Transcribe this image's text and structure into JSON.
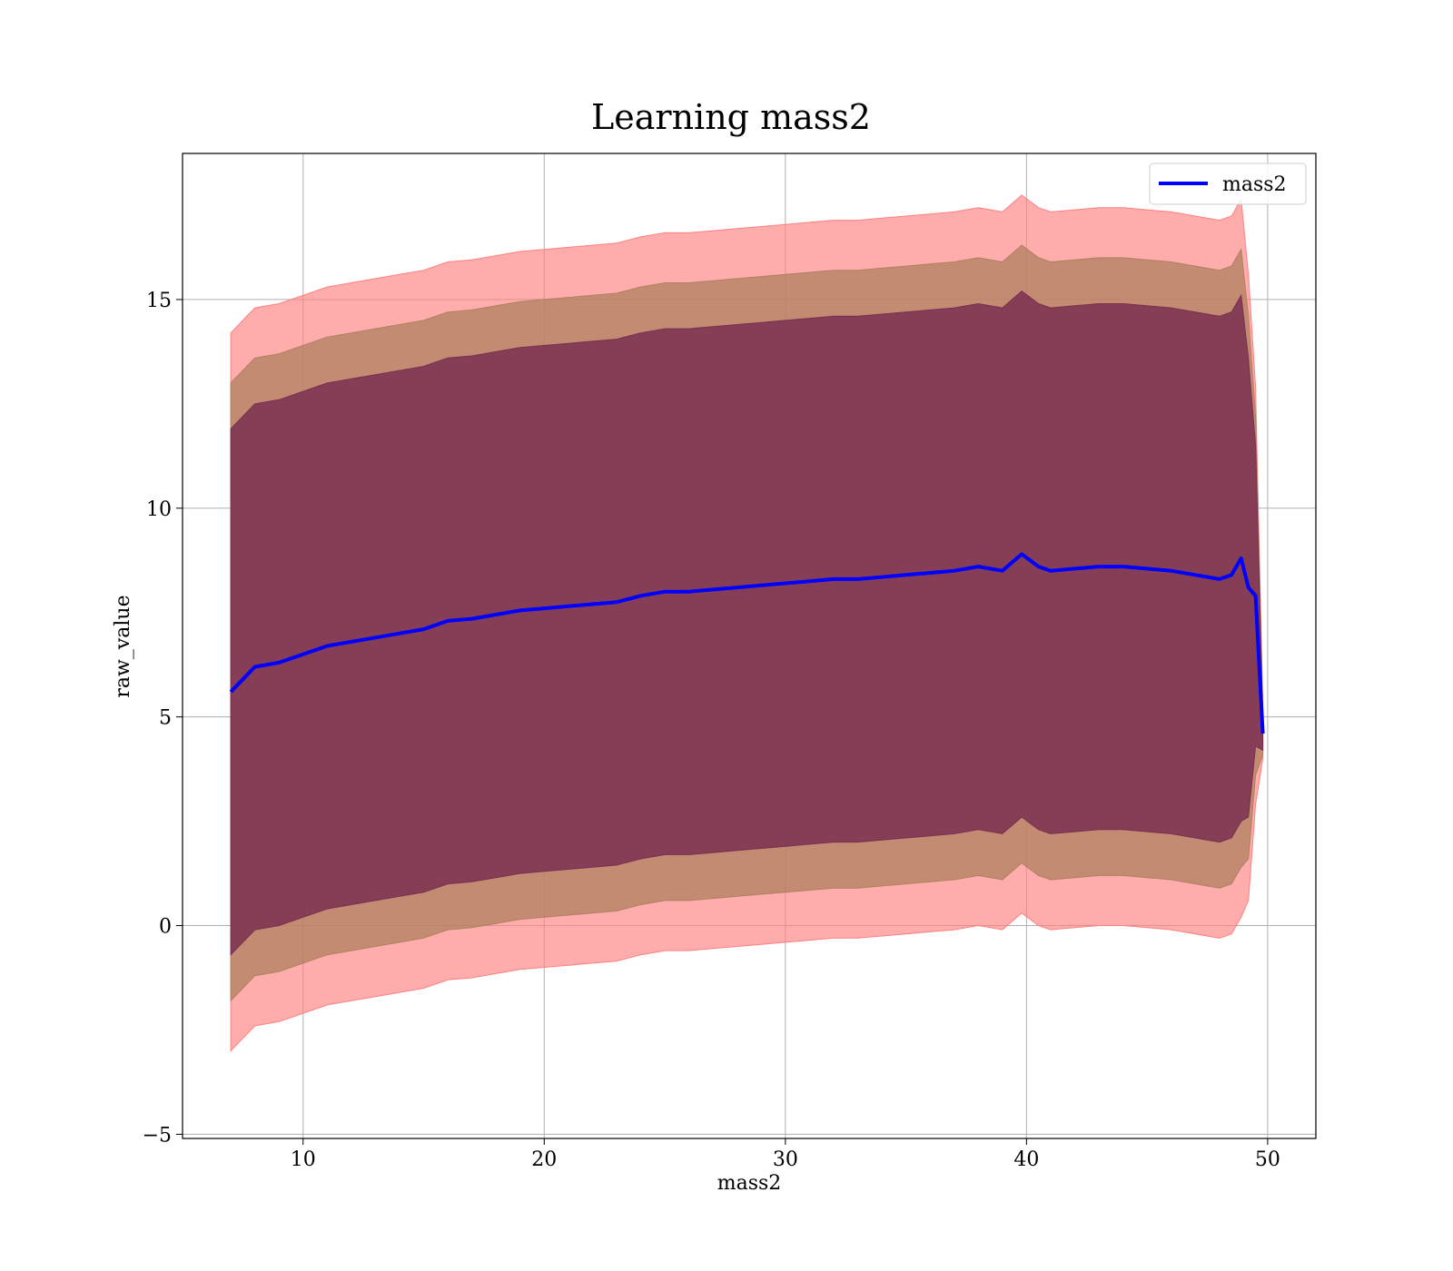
{
  "chart_data": {
    "type": "line",
    "title": "Learning mass2",
    "xlabel": "mass2",
    "ylabel": "raw_value",
    "xlim": [
      5,
      52
    ],
    "ylim": [
      -5.1,
      18.5
    ],
    "xticks": [
      10,
      20,
      30,
      40,
      50
    ],
    "yticks": [
      -5,
      0,
      5,
      10,
      15
    ],
    "grid": true,
    "legend": {
      "placement": "top-right",
      "entries": [
        "mass2"
      ]
    },
    "colors": {
      "line": "#0000ff",
      "band_outer": "#ff8080",
      "band_middle": "#b08060",
      "band_inner": "#7a3050",
      "grid": "#b0b0b0"
    },
    "series": [
      {
        "name": "mass2",
        "x": [
          7.0,
          7.5,
          8,
          9,
          10,
          11,
          12,
          13,
          14,
          15,
          16,
          17,
          18,
          19,
          20,
          21,
          22,
          23,
          24,
          25,
          26,
          27,
          28,
          29,
          30,
          31,
          32,
          33,
          34,
          35,
          36,
          37,
          38,
          39,
          39.8,
          40.5,
          41,
          42,
          43,
          44,
          45,
          46,
          47,
          48,
          48.5,
          48.9,
          49.2,
          49.5,
          49.8
        ],
        "y": [
          5.6,
          5.9,
          6.2,
          6.3,
          6.5,
          6.7,
          6.8,
          6.9,
          7.0,
          7.1,
          7.3,
          7.35,
          7.45,
          7.55,
          7.6,
          7.65,
          7.7,
          7.75,
          7.9,
          8.0,
          8.0,
          8.05,
          8.1,
          8.15,
          8.2,
          8.25,
          8.3,
          8.3,
          8.35,
          8.4,
          8.45,
          8.5,
          8.6,
          8.5,
          8.9,
          8.6,
          8.5,
          8.55,
          8.6,
          8.6,
          8.55,
          8.5,
          8.4,
          8.3,
          8.4,
          8.8,
          8.1,
          7.9,
          4.6
        ]
      }
    ],
    "bands": [
      {
        "level": "outer",
        "half_width": [
          8.6,
          8.6,
          8.6,
          8.6,
          8.6,
          8.6,
          8.6,
          8.6,
          8.6,
          8.6,
          8.6,
          8.6,
          8.6,
          8.6,
          8.6,
          8.6,
          8.6,
          8.6,
          8.6,
          8.6,
          8.6,
          8.6,
          8.6,
          8.6,
          8.6,
          8.6,
          8.6,
          8.6,
          8.6,
          8.6,
          8.6,
          8.6,
          8.6,
          8.6,
          8.6,
          8.6,
          8.6,
          8.6,
          8.6,
          8.6,
          8.6,
          8.6,
          8.6,
          8.6,
          8.6,
          8.6,
          7.5,
          5.0,
          0.6
        ]
      },
      {
        "level": "middle",
        "half_width": [
          7.4,
          7.4,
          7.4,
          7.4,
          7.4,
          7.4,
          7.4,
          7.4,
          7.4,
          7.4,
          7.4,
          7.4,
          7.4,
          7.4,
          7.4,
          7.4,
          7.4,
          7.4,
          7.4,
          7.4,
          7.4,
          7.4,
          7.4,
          7.4,
          7.4,
          7.4,
          7.4,
          7.4,
          7.4,
          7.4,
          7.4,
          7.4,
          7.4,
          7.4,
          7.4,
          7.4,
          7.4,
          7.4,
          7.4,
          7.4,
          7.4,
          7.4,
          7.4,
          7.4,
          7.4,
          7.4,
          6.5,
          4.3,
          0.5
        ]
      },
      {
        "level": "inner",
        "half_width": [
          6.3,
          6.3,
          6.3,
          6.3,
          6.3,
          6.3,
          6.3,
          6.3,
          6.3,
          6.3,
          6.3,
          6.3,
          6.3,
          6.3,
          6.3,
          6.3,
          6.3,
          6.3,
          6.3,
          6.3,
          6.3,
          6.3,
          6.3,
          6.3,
          6.3,
          6.3,
          6.3,
          6.3,
          6.3,
          6.3,
          6.3,
          6.3,
          6.3,
          6.3,
          6.3,
          6.3,
          6.3,
          6.3,
          6.3,
          6.3,
          6.3,
          6.3,
          6.3,
          6.3,
          6.3,
          6.3,
          5.5,
          3.6,
          0.4
        ]
      }
    ]
  }
}
